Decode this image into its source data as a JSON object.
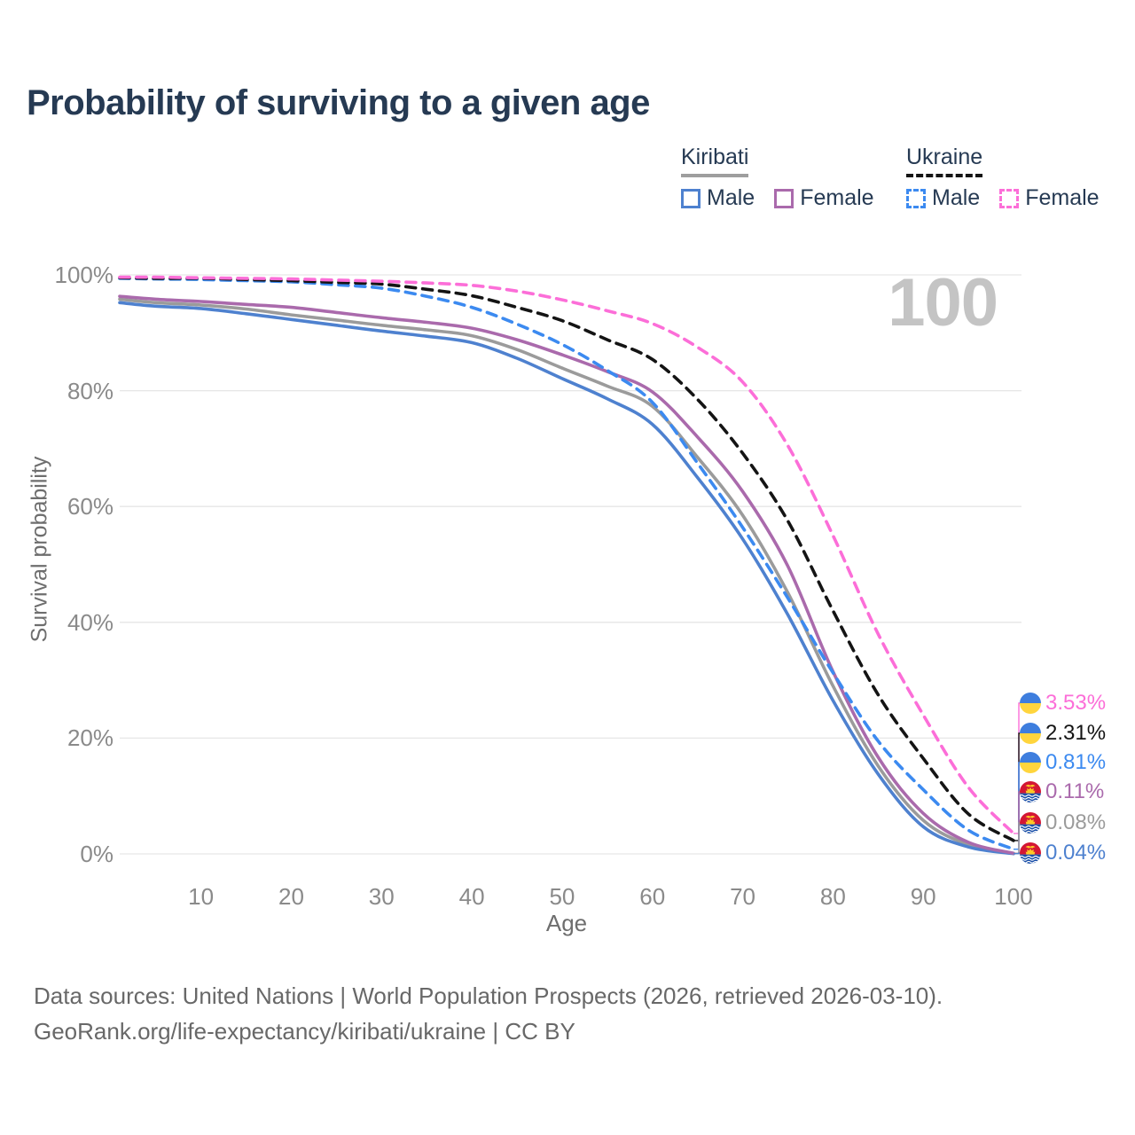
{
  "title": "Probability of surviving to a given age",
  "watermark": "100",
  "legend": {
    "groups": [
      {
        "label": "Kiribati",
        "line_style": "solid",
        "line_color": "#9e9e9e",
        "items": [
          {
            "label": "Male",
            "color": "#4e81cf",
            "line_style": "solid"
          },
          {
            "label": "Female",
            "color": "#aa6aac",
            "line_style": "solid"
          }
        ]
      },
      {
        "label": "Ukraine",
        "line_style": "dashed",
        "line_color": "#141414",
        "items": [
          {
            "label": "Male",
            "color": "#3c8af0",
            "line_style": "dashed"
          },
          {
            "label": "Female",
            "color": "#fc6ed8",
            "line_style": "dashed"
          }
        ]
      }
    ]
  },
  "chart_data": {
    "type": "line",
    "title": "Probability of surviving to a given age",
    "xlabel": "Age",
    "ylabel": "Survival probability",
    "x_ticks": [
      10,
      20,
      30,
      40,
      50,
      60,
      70,
      80,
      90,
      100
    ],
    "y_tick_values": [
      0,
      20,
      40,
      60,
      80,
      100
    ],
    "y_tick_labels": [
      "0%",
      "20%",
      "40%",
      "60%",
      "80%",
      "100%"
    ],
    "xlim": [
      1,
      100
    ],
    "ylim": [
      0,
      100
    ],
    "grid": "horizontal",
    "ages": [
      1,
      5,
      10,
      15,
      20,
      25,
      30,
      35,
      40,
      45,
      50,
      55,
      60,
      65,
      70,
      75,
      80,
      85,
      90,
      95,
      100
    ],
    "series": [
      {
        "name": "Kiribati Male",
        "country": "Kiribati",
        "sex": "Male",
        "flag": "kiribati",
        "color": "#4e81cf",
        "dash": "solid",
        "end_label": "0.04%",
        "values": [
          95.2,
          94.6,
          94.2,
          93.3,
          92.3,
          91.3,
          90.3,
          89.4,
          88.3,
          85.6,
          82.1,
          78.6,
          74.2,
          65.0,
          54.4,
          41.3,
          26.5,
          13.8,
          4.7,
          1.2,
          0.04
        ]
      },
      {
        "name": "Kiribati Female",
        "country": "Kiribati",
        "sex": "Female",
        "flag": "kiribati",
        "color": "#aa6aac",
        "dash": "solid",
        "end_label": "0.11%",
        "values": [
          96.3,
          95.8,
          95.4,
          94.9,
          94.4,
          93.5,
          92.6,
          91.8,
          90.8,
          88.8,
          86.2,
          83.3,
          79.8,
          72.0,
          62.6,
          49.7,
          31.5,
          16.7,
          7.0,
          2.0,
          0.11
        ]
      },
      {
        "name": "Kiribati Total",
        "country": "Kiribati",
        "sex": "Both",
        "flag": "kiribati",
        "color": "#9b9b9b",
        "dash": "solid",
        "end_label": "0.08%",
        "values": [
          95.8,
          95.2,
          94.8,
          94.1,
          93.1,
          92.2,
          91.3,
          90.5,
          89.5,
          87.1,
          83.9,
          80.8,
          77.3,
          68.5,
          58.5,
          45.1,
          29.0,
          15.2,
          5.8,
          1.6,
          0.08
        ]
      },
      {
        "name": "Ukraine Male",
        "country": "Ukraine",
        "sex": "Male",
        "flag": "ukraine",
        "color": "#3c8af0",
        "dash": "dashed",
        "end_label": "0.81%",
        "values": [
          99.4,
          99.3,
          99.2,
          99.0,
          98.8,
          98.3,
          97.7,
          96.3,
          94.4,
          91.5,
          88.0,
          83.5,
          78.0,
          67.5,
          56.4,
          44.2,
          31.3,
          19.5,
          11.1,
          4.1,
          0.81
        ]
      },
      {
        "name": "Ukraine Female",
        "country": "Ukraine",
        "sex": "Female",
        "flag": "ukraine",
        "color": "#fc6ed8",
        "dash": "dashed",
        "end_label": "3.53%",
        "values": [
          99.6,
          99.6,
          99.5,
          99.4,
          99.3,
          99.1,
          98.9,
          98.6,
          98.2,
          97.2,
          95.7,
          93.8,
          91.6,
          87.5,
          81.5,
          70.5,
          55.0,
          38.0,
          24.0,
          11.5,
          3.53
        ]
      },
      {
        "name": "Ukraine Total",
        "country": "Ukraine",
        "sex": "Both",
        "flag": "ukraine",
        "color": "#141414",
        "dash": "dashed",
        "end_label": "2.31%",
        "values": [
          99.5,
          99.4,
          99.4,
          99.2,
          99.0,
          98.7,
          98.4,
          97.5,
          96.4,
          94.4,
          92.1,
          88.8,
          85.4,
          78.5,
          69.2,
          57.5,
          42.0,
          27.5,
          16.5,
          6.9,
          2.31
        ]
      }
    ],
    "end_label_order": [
      4,
      5,
      3,
      1,
      2,
      0
    ],
    "legend_position": "top-right"
  },
  "footer": {
    "line1": "Data sources: United Nations | World Population Prospects (2026, retrieved 2026-03-10).",
    "line2": "GeoRank.org/life-expectancy/kiribati/ukraine | CC BY"
  }
}
